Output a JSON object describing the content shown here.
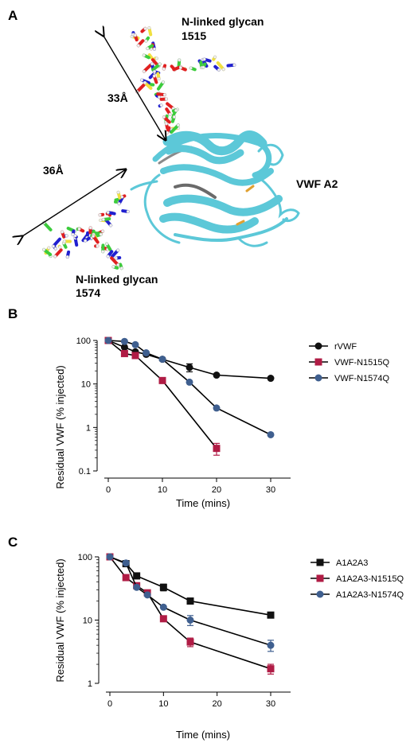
{
  "panel_a": {
    "letter": "A",
    "glycan_top": {
      "line1": "N-linked glycan",
      "line2": "1515"
    },
    "glycan_bottom": {
      "line1": "N-linked glycan",
      "line2": "1574"
    },
    "dist_top": "33Å",
    "dist_bottom": "36Å",
    "domain_label": "VWF A2",
    "colors": {
      "helix": "#5cc8d8",
      "helix_dark": "#8a8a8a",
      "carbon": "#3ccc3c",
      "nitrogen": "#2020d0",
      "oxygen": "#e02020",
      "sulfur": "#f0e040"
    }
  },
  "chart_data": [
    {
      "panel": "B",
      "type": "line",
      "xlabel": "Time (mins)",
      "ylabel": "Residual VWF (% injected)",
      "yscale": "log",
      "xlim": [
        0,
        30
      ],
      "ylim": [
        0.1,
        100
      ],
      "xticks": [
        "0",
        "10",
        "20",
        "30"
      ],
      "yticks": [
        "100",
        "10",
        "1",
        "0.1"
      ],
      "legend_position": "right",
      "series": [
        {
          "name": "rVWF",
          "marker": "circle",
          "color": "#111111",
          "x": [
            0,
            3,
            5,
            7,
            10,
            15,
            20,
            30
          ],
          "y": [
            100,
            70,
            55,
            48,
            37,
            24,
            16,
            13.5
          ],
          "err": [
            0,
            0,
            0,
            0,
            0,
            5,
            0,
            0
          ]
        },
        {
          "name": "VWF-N1515Q",
          "marker": "square",
          "color": "#b01c45",
          "x": [
            0,
            3,
            5,
            10,
            20
          ],
          "y": [
            100,
            50,
            45,
            12,
            0.33
          ],
          "err": [
            0,
            0,
            0,
            0,
            0.1
          ]
        },
        {
          "name": "VWF-N1574Q",
          "marker": "circle",
          "color": "#3f5f8f",
          "x": [
            0,
            3,
            5,
            7,
            10,
            15,
            20,
            30
          ],
          "y": [
            100,
            95,
            80,
            52,
            37,
            11,
            2.8,
            0.68
          ],
          "err": [
            0,
            0,
            0,
            0,
            0,
            0,
            0,
            0
          ]
        }
      ]
    },
    {
      "panel": "C",
      "type": "line",
      "xlabel": "Time (mins)",
      "ylabel": "Residual VWF (% injected)",
      "yscale": "log",
      "xlim": [
        0,
        30
      ],
      "ylim": [
        1,
        100
      ],
      "xticks": [
        "0",
        "10",
        "20",
        "30"
      ],
      "yticks": [
        "100",
        "10",
        "1"
      ],
      "legend_position": "right",
      "series": [
        {
          "name": "A1A2A3",
          "marker": "square",
          "color": "#111111",
          "x": [
            0,
            3,
            5,
            10,
            15,
            30
          ],
          "y": [
            100,
            78,
            50,
            33,
            20,
            12
          ],
          "err": [
            0,
            0,
            5,
            4,
            0,
            1
          ]
        },
        {
          "name": "A1A2A3-N1515Q",
          "marker": "square",
          "color": "#b01c45",
          "x": [
            0,
            3,
            5,
            7,
            10,
            15,
            30
          ],
          "y": [
            100,
            47,
            35,
            27,
            10.5,
            4.5,
            1.7
          ],
          "err": [
            0,
            0,
            0,
            0,
            1,
            0.7,
            0.3
          ]
        },
        {
          "name": "A1A2A3-N1574Q",
          "marker": "circle",
          "color": "#3f5f8f",
          "x": [
            0,
            3,
            5,
            7,
            10,
            15,
            30
          ],
          "y": [
            100,
            80,
            33,
            25,
            16,
            10,
            4
          ],
          "err": [
            0,
            0,
            0,
            0,
            0,
            1.8,
            0.8
          ]
        }
      ]
    }
  ]
}
